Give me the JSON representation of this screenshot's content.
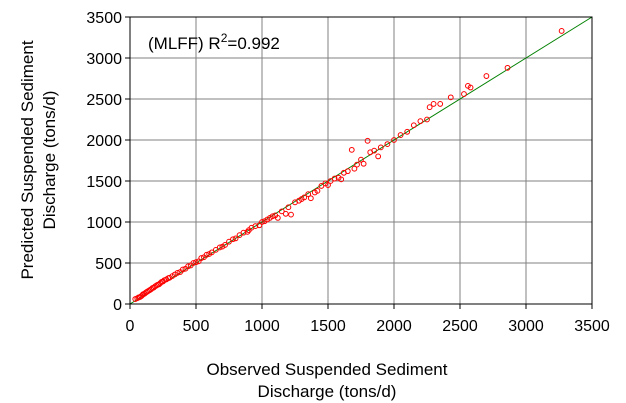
{
  "chart_data": {
    "type": "scatter",
    "title": "",
    "annotation": {
      "label": "(MLFF) R",
      "superscript": "2",
      "value": "=0.992"
    },
    "xlabel": [
      "Observed Suspended Sediment",
      "Discharge (tons/d)"
    ],
    "ylabel": [
      "Predicted Suspended Sediment",
      "Discharge (tons/d)"
    ],
    "xlim": [
      0,
      3500
    ],
    "ylim": [
      0,
      3500
    ],
    "xticks": [
      "0",
      "500",
      "1000",
      "1500",
      "2000",
      "2500",
      "3000",
      "3500"
    ],
    "yticks": [
      "0",
      "500",
      "1000",
      "1500",
      "2000",
      "2500",
      "3000",
      "3500"
    ],
    "grid": true,
    "legend": "none",
    "colors": {
      "points": "#ff0000",
      "fit_line": "#008000",
      "grid": "#808080",
      "axis": "#000000"
    },
    "fit_line": {
      "x": [
        0,
        3500
      ],
      "y": [
        0,
        3500
      ]
    },
    "series": [
      {
        "marker": "open-circle",
        "points": [
          [
            40,
            60
          ],
          [
            55,
            70
          ],
          [
            65,
            80
          ],
          [
            75,
            85
          ],
          [
            85,
            95
          ],
          [
            95,
            110
          ],
          [
            100,
            120
          ],
          [
            110,
            125
          ],
          [
            120,
            140
          ],
          [
            130,
            150
          ],
          [
            140,
            160
          ],
          [
            150,
            170
          ],
          [
            160,
            180
          ],
          [
            170,
            195
          ],
          [
            180,
            200
          ],
          [
            190,
            215
          ],
          [
            200,
            225
          ],
          [
            210,
            235
          ],
          [
            220,
            240
          ],
          [
            230,
            255
          ],
          [
            240,
            270
          ],
          [
            250,
            275
          ],
          [
            260,
            290
          ],
          [
            275,
            300
          ],
          [
            290,
            315
          ],
          [
            300,
            320
          ],
          [
            320,
            340
          ],
          [
            340,
            360
          ],
          [
            360,
            380
          ],
          [
            380,
            390
          ],
          [
            400,
            420
          ],
          [
            420,
            430
          ],
          [
            440,
            460
          ],
          [
            460,
            470
          ],
          [
            480,
            500
          ],
          [
            500,
            510
          ],
          [
            520,
            520
          ],
          [
            540,
            560
          ],
          [
            560,
            570
          ],
          [
            580,
            600
          ],
          [
            600,
            610
          ],
          [
            620,
            630
          ],
          [
            650,
            660
          ],
          [
            680,
            690
          ],
          [
            700,
            700
          ],
          [
            720,
            720
          ],
          [
            750,
            760
          ],
          [
            780,
            790
          ],
          [
            800,
            800
          ],
          [
            830,
            840
          ],
          [
            860,
            870
          ],
          [
            890,
            880
          ],
          [
            900,
            900
          ],
          [
            920,
            930
          ],
          [
            950,
            950
          ],
          [
            980,
            960
          ],
          [
            1000,
            1000
          ],
          [
            1020,
            1010
          ],
          [
            1040,
            1030
          ],
          [
            1060,
            1050
          ],
          [
            1080,
            1070
          ],
          [
            1100,
            1080
          ],
          [
            1120,
            1050
          ],
          [
            1150,
            1130
          ],
          [
            1180,
            1100
          ],
          [
            1200,
            1180
          ],
          [
            1220,
            1090
          ],
          [
            1250,
            1240
          ],
          [
            1280,
            1260
          ],
          [
            1300,
            1280
          ],
          [
            1320,
            1300
          ],
          [
            1350,
            1340
          ],
          [
            1370,
            1290
          ],
          [
            1400,
            1360
          ],
          [
            1420,
            1380
          ],
          [
            1450,
            1440
          ],
          [
            1480,
            1470
          ],
          [
            1500,
            1450
          ],
          [
            1520,
            1500
          ],
          [
            1550,
            1530
          ],
          [
            1580,
            1540
          ],
          [
            1600,
            1520
          ],
          [
            1620,
            1600
          ],
          [
            1650,
            1620
          ],
          [
            1680,
            1880
          ],
          [
            1700,
            1650
          ],
          [
            1720,
            1700
          ],
          [
            1750,
            1760
          ],
          [
            1770,
            1710
          ],
          [
            1800,
            1990
          ],
          [
            1820,
            1850
          ],
          [
            1850,
            1870
          ],
          [
            1880,
            1800
          ],
          [
            1900,
            1910
          ],
          [
            1950,
            1950
          ],
          [
            2000,
            2000
          ],
          [
            2050,
            2060
          ],
          [
            2100,
            2100
          ],
          [
            2150,
            2180
          ],
          [
            2200,
            2230
          ],
          [
            2250,
            2250
          ],
          [
            2270,
            2400
          ],
          [
            2300,
            2440
          ],
          [
            2350,
            2440
          ],
          [
            2430,
            2520
          ],
          [
            2530,
            2560
          ],
          [
            2560,
            2660
          ],
          [
            2580,
            2640
          ],
          [
            2700,
            2780
          ],
          [
            2860,
            2880
          ],
          [
            3270,
            3330
          ]
        ]
      }
    ]
  }
}
